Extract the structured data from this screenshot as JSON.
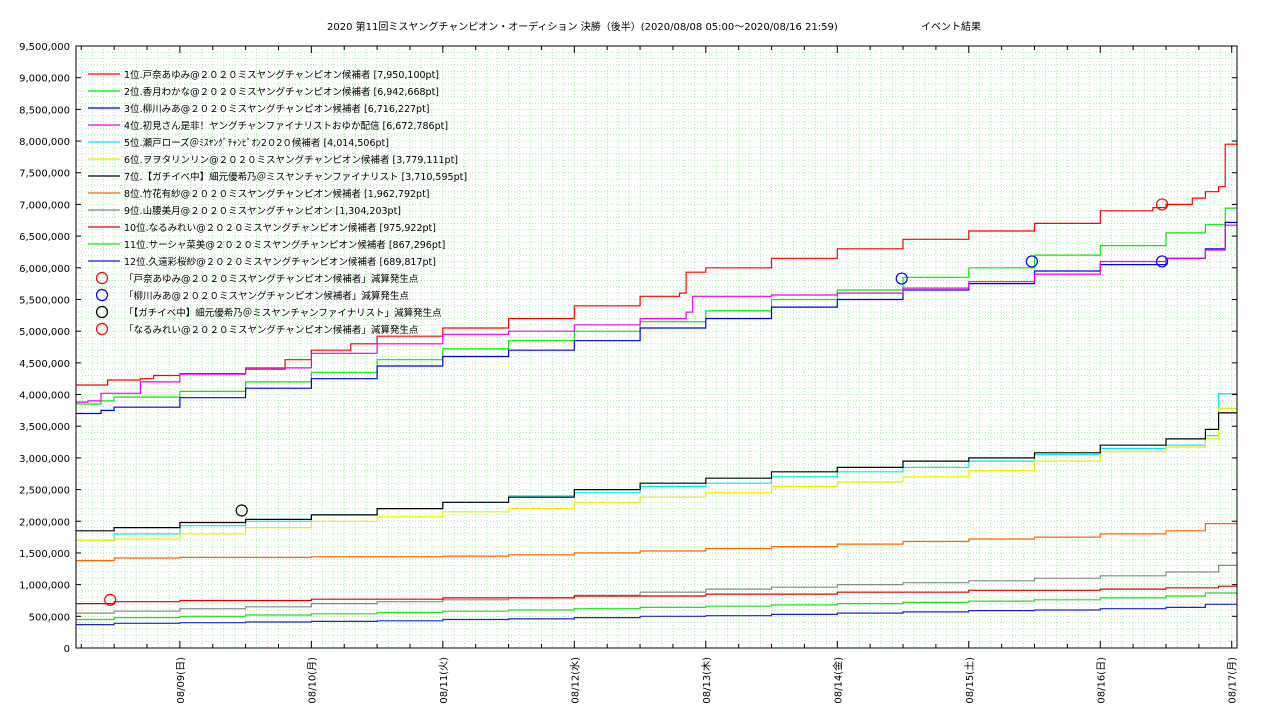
{
  "chart_data": {
    "type": "line",
    "title": "2020 第11回ミスヤングチャンピオン・オーディション 決勝（後半）(2020/08/08 05:00〜2020/08/16 21:59)",
    "title_right": "イベント結果",
    "xlabel": "",
    "ylabel": "",
    "ylim": [
      0,
      9500000
    ],
    "y_ticks": [
      0,
      500000,
      1000000,
      1500000,
      2000000,
      2500000,
      3000000,
      3500000,
      4000000,
      4500000,
      5000000,
      5500000,
      6000000,
      6500000,
      7000000,
      7500000,
      8000000,
      8500000,
      9000000,
      9500000
    ],
    "y_tick_labels": [
      "0",
      "500,000",
      "1,000,000",
      "1,500,000",
      "2,000,000",
      "2,500,000",
      "3,000,000",
      "3,500,000",
      "4,000,000",
      "4,500,000",
      "5,000,000",
      "5,500,000",
      "6,000,000",
      "6,500,000",
      "7,000,000",
      "7,500,000",
      "8,000,000",
      "8,500,000",
      "9,000,000",
      "9,500,000"
    ],
    "x_tick_labels": [
      "08/09(日)",
      "08/10(月)",
      "08/11(火)",
      "08/12(水)",
      "08/13(木)",
      "08/14(金)",
      "08/15(土)",
      "08/16(日)",
      "08/17(月)"
    ],
    "x_range_days": [
      -0.79,
      8.04
    ],
    "grid": true,
    "legend_position": "top-left",
    "series": [
      {
        "name": "1位.戸奈あゆみ@２０２０ミスヤングチャンピオン候補者 [7,950,100pt]",
        "color": "#ff0000",
        "x": [
          -0.79,
          -0.6,
          -0.55,
          -0.3,
          -0.2,
          0,
          0.5,
          0.8,
          1,
          1.3,
          1.5,
          2,
          2.5,
          3,
          3.5,
          3.8,
          3.85,
          4,
          4.5,
          5,
          5.5,
          6,
          6.5,
          7,
          7.4,
          7.5,
          7.7,
          7.8,
          7.9,
          7.95,
          8.04
        ],
        "y": [
          4150000,
          4150000,
          4230000,
          4250000,
          4300000,
          4330000,
          4400000,
          4550000,
          4700000,
          4800000,
          4920000,
          5050000,
          5200000,
          5400000,
          5550000,
          5600000,
          5930000,
          6000000,
          6150000,
          6300000,
          6450000,
          6580000,
          6700000,
          6900000,
          6950000,
          7000000,
          7100000,
          7200000,
          7280000,
          7950100,
          7950100
        ]
      },
      {
        "name": "2位.香月わかな@２０２０ミスヤングチャンピオン候補者 [6,942,668pt]",
        "color": "#00ee00",
        "x": [
          -0.79,
          -0.6,
          -0.5,
          0,
          0.5,
          1,
          1.5,
          2,
          2.5,
          3,
          3.5,
          4,
          4.5,
          5,
          5.5,
          6,
          6.5,
          7,
          7.5,
          7.8,
          7.95,
          8.04
        ],
        "y": [
          3850000,
          3900000,
          3960000,
          4050000,
          4200000,
          4350000,
          4550000,
          4720000,
          4850000,
          5000000,
          5150000,
          5320000,
          5500000,
          5650000,
          5850000,
          6000000,
          6200000,
          6350000,
          6550000,
          6680000,
          6942668,
          6942668
        ]
      },
      {
        "name": "3位.柳川みあ@２０２０ミスヤングチャンピオン候補者 [6,716,227pt]",
        "color": "#0000ee",
        "x": [
          -0.79,
          -0.6,
          -0.5,
          0,
          0.5,
          1,
          1.5,
          2,
          2.5,
          3,
          3.5,
          4,
          4.5,
          5,
          5.5,
          6,
          6.5,
          7,
          7.5,
          7.8,
          7.95,
          8.04
        ],
        "y": [
          3700000,
          3750000,
          3800000,
          3950000,
          4100000,
          4250000,
          4450000,
          4600000,
          4700000,
          4850000,
          5050000,
          5200000,
          5380000,
          5500000,
          5650000,
          5750000,
          5950000,
          6050000,
          6150000,
          6300000,
          6716227,
          6716227
        ]
      },
      {
        "name": "4位.初見さん是非！ヤングチャンファイナリストおゆか配信 [6,672,786pt]",
        "color": "#ee00ee",
        "x": [
          -0.79,
          -0.7,
          -0.6,
          -0.3,
          0,
          0.5,
          1,
          1.5,
          2,
          2.5,
          3,
          3.5,
          3.85,
          3.9,
          4,
          4.5,
          5,
          5.5,
          6,
          6.5,
          7,
          7.5,
          7.8,
          7.95,
          8.04
        ],
        "y": [
          3880000,
          3900000,
          4020000,
          4200000,
          4320000,
          4420000,
          4650000,
          4800000,
          4950000,
          5000000,
          5100000,
          5200000,
          5300000,
          5550000,
          5550000,
          5570000,
          5600000,
          5680000,
          5780000,
          5900000,
          6100000,
          6150000,
          6280000,
          6672786,
          6672786
        ]
      },
      {
        "name": "5位.瀬戸ローズ＠ﾐｽﾔﾝｸﾞﾁｬﾝﾋﾟｵﾝ2０2０候補者 [4,014,506pt]",
        "color": "#00eeee",
        "x": [
          -0.79,
          -0.5,
          0,
          0.5,
          1,
          1.5,
          2,
          2.5,
          3,
          3.5,
          4,
          4.5,
          5,
          5.5,
          6,
          6.5,
          7,
          7.5,
          7.8,
          7.9,
          8.04
        ],
        "y": [
          1700000,
          1800000,
          1930000,
          2000000,
          2100000,
          2200000,
          2300000,
          2400000,
          2450000,
          2550000,
          2600000,
          2700000,
          2780000,
          2850000,
          2950000,
          3050000,
          3150000,
          3200000,
          3350000,
          4014506,
          4014506
        ]
      },
      {
        "name": "6位.ヲヲタリンリン@２０２０ミスヤングチャンピオン候補者 [3,779,111pt]",
        "color": "#eeee00",
        "x": [
          -0.79,
          -0.5,
          0,
          0.5,
          1,
          1.5,
          2,
          2.5,
          3,
          3.5,
          4,
          4.5,
          5,
          5.5,
          6,
          6.5,
          7,
          7.5,
          7.8,
          7.9,
          8.04
        ],
        "y": [
          1700000,
          1720000,
          1800000,
          1900000,
          2000000,
          2070000,
          2150000,
          2200000,
          2300000,
          2380000,
          2450000,
          2550000,
          2620000,
          2700000,
          2800000,
          2950000,
          3100000,
          3170000,
          3300000,
          3779111,
          3779111
        ]
      },
      {
        "name": "7位.【ガチイベ中】細元優希乃＠ミスヤンチャンファイナリスト [3,710,595pt]",
        "color": "#000000",
        "x": [
          -0.79,
          -0.5,
          0,
          0.5,
          1,
          1.5,
          2,
          2.5,
          3,
          3.5,
          4,
          4.5,
          5,
          5.5,
          6,
          6.5,
          7,
          7.5,
          7.8,
          7.9,
          8.04
        ],
        "y": [
          1850000,
          1900000,
          1980000,
          2030000,
          2100000,
          2200000,
          2300000,
          2380000,
          2500000,
          2600000,
          2680000,
          2780000,
          2850000,
          2950000,
          3000000,
          3080000,
          3200000,
          3300000,
          3450000,
          3710595,
          3710595
        ]
      },
      {
        "name": "8位.竹花有紗@２０２０ミスヤングチャンピオン候補者 [1,962,792pt]",
        "color": "#ff6600",
        "x": [
          -0.79,
          -0.5,
          0,
          1,
          2,
          2.5,
          3,
          3.5,
          4,
          4.5,
          5,
          5.5,
          6,
          6.5,
          7,
          7.5,
          7.8,
          8.04
        ],
        "y": [
          1380000,
          1420000,
          1430000,
          1440000,
          1450000,
          1470000,
          1500000,
          1530000,
          1570000,
          1600000,
          1640000,
          1680000,
          1720000,
          1750000,
          1800000,
          1850000,
          1962792,
          1962792
        ]
      },
      {
        "name": "9位.山腰美月@２０２０ミスヤングチャンピオン [1,304,203pt]",
        "color": "#888888",
        "x": [
          -0.79,
          -0.5,
          0,
          0.5,
          1,
          1.5,
          2,
          2.5,
          3,
          3.5,
          4,
          4.5,
          5,
          5.5,
          6,
          6.5,
          7,
          7.5,
          7.9,
          8.04
        ],
        "y": [
          550000,
          580000,
          620000,
          650000,
          700000,
          730000,
          760000,
          790000,
          830000,
          880000,
          930000,
          960000,
          1000000,
          1030000,
          1060000,
          1100000,
          1140000,
          1200000,
          1304203,
          1304203
        ]
      },
      {
        "name": "10位.なるみれい@２０２０ミスヤングチャンピオン候補者 [975,922pt]",
        "color": "#dd0000",
        "x": [
          -0.79,
          -0.5,
          0,
          1,
          2,
          3,
          4,
          5,
          6,
          7,
          7.5,
          7.9,
          8.04
        ],
        "y": [
          700000,
          730000,
          750000,
          770000,
          790000,
          820000,
          850000,
          880000,
          910000,
          930000,
          950000,
          975922,
          975922
        ]
      },
      {
        "name": "11位.サーシャ菜美@２０２０ミスヤングチャンピオン候補者 [867,296pt]",
        "color": "#22dd22",
        "x": [
          -0.79,
          -0.5,
          0,
          0.5,
          1,
          1.5,
          2,
          2.5,
          3,
          3.5,
          4,
          4.5,
          5,
          5.5,
          6,
          6.5,
          7,
          7.5,
          7.8,
          8.04
        ],
        "y": [
          450000,
          480000,
          500000,
          520000,
          540000,
          560000,
          580000,
          600000,
          620000,
          640000,
          660000,
          680000,
          700000,
          720000,
          740000,
          760000,
          790000,
          820000,
          867296,
          867296
        ]
      },
      {
        "name": "12位.久遠彩桜紗@２０２０ミスヤングチャンピオン候補者 [689,817pt]",
        "color": "#2222cc",
        "x": [
          -0.79,
          -0.5,
          0,
          0.5,
          1,
          1.5,
          2,
          2.5,
          3,
          3.5,
          4,
          4.5,
          5,
          5.5,
          6,
          6.5,
          7,
          7.5,
          7.8,
          8.04
        ],
        "y": [
          370000,
          390000,
          400000,
          410000,
          420000,
          430000,
          450000,
          460000,
          480000,
          500000,
          510000,
          530000,
          550000,
          570000,
          590000,
          600000,
          620000,
          640000,
          689817,
          689817
        ]
      }
    ],
    "markers": [
      {
        "label": "「戸奈あゆみ@２０２０ミスヤングチャンピオン候補者」減算発生点",
        "color": "#ff0000",
        "points": [
          [
            7.47,
            7000000
          ]
        ]
      },
      {
        "label": "「柳川みあ@２０２０ミスヤングチャンピオン候補者」減算発生点",
        "color": "#0000ee",
        "points": [
          [
            5.49,
            5830000
          ],
          [
            6.48,
            6100000
          ],
          [
            7.47,
            6100000
          ]
        ]
      },
      {
        "label": "「【ガチイベ中】細元優希乃＠ミスヤンチャンファイナリスト」減算発生点",
        "color": "#000000",
        "points": [
          [
            0.47,
            2170000
          ]
        ]
      },
      {
        "label": "「なるみれい@２０２０ミスヤングチャンピオン候補者」減算発生点",
        "color": "#ff0000",
        "points": [
          [
            -0.53,
            760000
          ]
        ]
      }
    ]
  }
}
